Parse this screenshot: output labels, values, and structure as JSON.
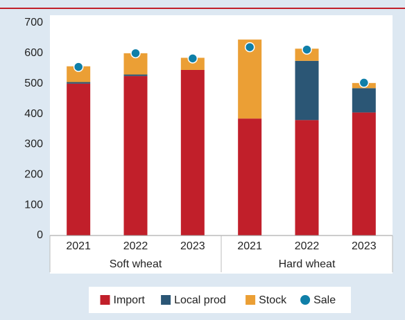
{
  "chart_data": {
    "type": "bar",
    "groups": [
      {
        "name": "Soft wheat",
        "categories": [
          "2021",
          "2022",
          "2023"
        ]
      },
      {
        "name": "Hard wheat",
        "categories": [
          "2021",
          "2022",
          "2023"
        ]
      }
    ],
    "series": [
      {
        "name": "Import",
        "color": "#c11f2a",
        "kind": "bar",
        "values": [
          500,
          525,
          545,
          385,
          380,
          405
        ]
      },
      {
        "name": "Local prod",
        "color": "#2b5675",
        "kind": "bar",
        "values": [
          5,
          5,
          0,
          0,
          195,
          80
        ]
      },
      {
        "name": "Stock",
        "color": "#eb9f35",
        "kind": "bar",
        "values": [
          52,
          70,
          40,
          260,
          40,
          17
        ]
      },
      {
        "name": "Sale",
        "color": "#0f7fa8",
        "kind": "dot",
        "values": [
          555,
          600,
          583,
          620,
          612,
          503
        ]
      }
    ],
    "ylim": [
      0,
      700
    ],
    "yticks": [
      0,
      100,
      200,
      300,
      400,
      500,
      600,
      700
    ],
    "legend": "bottom"
  }
}
